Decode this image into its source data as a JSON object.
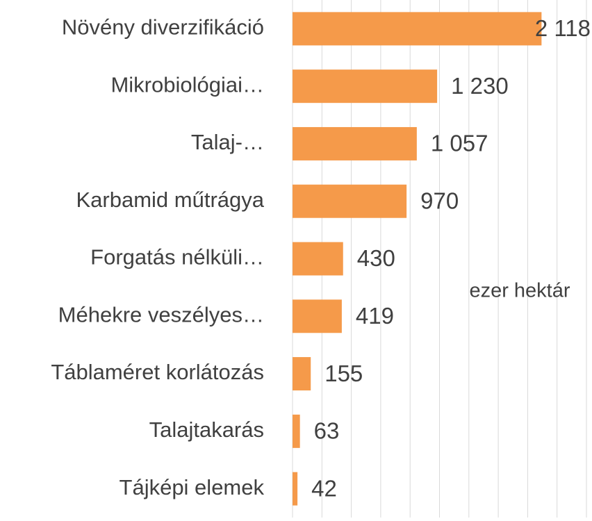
{
  "chart_data": {
    "type": "barh",
    "categories": [
      "Növény diverzifikáció",
      "Mikrobiológiai…",
      "Talaj-…",
      "Karbamid műtrágya",
      "Forgatás nélküli…",
      "Méhekre veszélyes…",
      "Táblaméret korlátozás",
      "Talajtakarás",
      "Tájképi elemek"
    ],
    "values": [
      2118,
      1230,
      1057,
      970,
      430,
      419,
      155,
      63,
      42
    ],
    "value_labels": [
      "2 118",
      "1 230",
      "1 057",
      "970",
      "430",
      "419",
      "155",
      "63",
      "42"
    ],
    "color": "#F59A4A",
    "xlim": [
      0,
      2500
    ],
    "xticks": [
      0,
      250,
      500,
      750,
      1000,
      1250,
      1500,
      1750,
      2000,
      2250,
      2500
    ],
    "grid": true,
    "annotation": "ezer hektár"
  }
}
